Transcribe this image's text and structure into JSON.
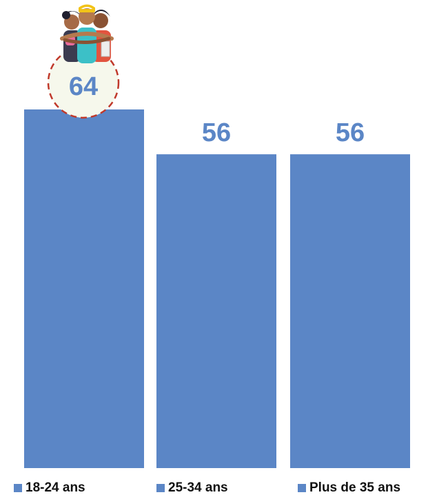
{
  "chart_data": {
    "type": "bar",
    "categories": [
      "18-24 ans",
      "25-34 ans",
      "Plus de 35 ans"
    ],
    "values": [
      64,
      56,
      56
    ],
    "value_labels": [
      "64",
      "56",
      "56"
    ],
    "ylim": [
      0,
      64
    ],
    "grid": false,
    "legend_position": "bottom",
    "highlight_category": "18-24 ans",
    "illustration": "group-of-friends-hugging"
  },
  "colors": {
    "bar": "#5b86c6",
    "label": "#5b86c6",
    "highlight_circle": "#c0392b",
    "highlight_fill": "#f6f8ec"
  }
}
